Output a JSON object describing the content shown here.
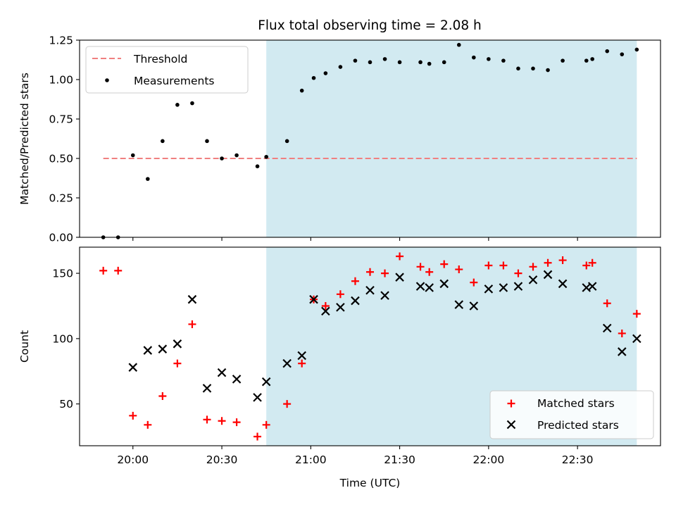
{
  "title": "Flux total observing time = 2.08 h",
  "colors": {
    "shade": "#add8e6",
    "threshold": "#f08080",
    "measurement": "#000000",
    "matched": "#ff0000",
    "predicted": "#000000"
  },
  "chart_data": [
    {
      "type": "scatter",
      "panel": "top",
      "ylabel": "Matched/Predicted stars",
      "ylim": [
        0.0,
        1.25
      ],
      "yticks": [
        "0.00",
        "0.25",
        "0.50",
        "0.75",
        "1.00",
        "1.25"
      ],
      "shaded_interval": [
        "20:45",
        "22:50"
      ],
      "threshold": {
        "name": "Threshold",
        "value": 0.5,
        "x_range": [
          "19:50",
          "22:50"
        ]
      },
      "legend": {
        "placement": "upper-left",
        "entries": [
          "Threshold",
          "Measurements"
        ]
      },
      "series": [
        {
          "name": "Measurements",
          "marker": "dot",
          "x": [
            "19:50",
            "19:55",
            "20:00",
            "20:05",
            "20:10",
            "20:15",
            "20:20",
            "20:25",
            "20:30",
            "20:35",
            "20:42",
            "20:45",
            "20:52",
            "20:57",
            "21:01",
            "21:05",
            "21:10",
            "21:15",
            "21:20",
            "21:25",
            "21:30",
            "21:37",
            "21:40",
            "21:45",
            "21:50",
            "21:55",
            "22:00",
            "22:05",
            "22:10",
            "22:15",
            "22:20",
            "22:25",
            "22:33",
            "22:35",
            "22:40",
            "22:45",
            "22:50"
          ],
          "y": [
            0.0,
            0.0,
            0.52,
            0.37,
            0.61,
            0.84,
            0.85,
            0.61,
            0.5,
            0.52,
            0.45,
            0.51,
            0.61,
            0.93,
            1.01,
            1.04,
            1.08,
            1.12,
            1.11,
            1.13,
            1.11,
            1.11,
            1.1,
            1.11,
            1.22,
            1.14,
            1.13,
            1.12,
            1.07,
            1.07,
            1.06,
            1.12,
            1.12,
            1.13,
            1.18,
            1.16,
            1.19
          ]
        }
      ]
    },
    {
      "type": "scatter",
      "panel": "bottom",
      "xlabel": "Time (UTC)",
      "ylabel": "Count",
      "ylim": [
        18,
        170
      ],
      "yticks": [
        "50",
        "100",
        "150"
      ],
      "xticks": [
        "20:00",
        "20:30",
        "21:00",
        "21:30",
        "22:00",
        "22:30"
      ],
      "xlim": [
        "19:42",
        "22:58"
      ],
      "shaded_interval": [
        "20:45",
        "22:50"
      ],
      "legend": {
        "placement": "lower-right",
        "entries": [
          "Matched stars",
          "Predicted stars"
        ]
      },
      "series": [
        {
          "name": "Matched stars",
          "marker": "plus",
          "x": [
            "19:50",
            "19:55",
            "20:00",
            "20:05",
            "20:10",
            "20:15",
            "20:20",
            "20:25",
            "20:30",
            "20:35",
            "20:42",
            "20:45",
            "20:52",
            "20:57",
            "21:01",
            "21:05",
            "21:10",
            "21:15",
            "21:20",
            "21:25",
            "21:30",
            "21:37",
            "21:40",
            "21:45",
            "21:50",
            "21:55",
            "22:00",
            "22:05",
            "22:10",
            "22:15",
            "22:20",
            "22:25",
            "22:33",
            "22:35",
            "22:40",
            "22:45",
            "22:50"
          ],
          "y": [
            152,
            152,
            41,
            34,
            56,
            81,
            111,
            38,
            37,
            36,
            25,
            34,
            50,
            81,
            130,
            125,
            134,
            144,
            151,
            150,
            163,
            155,
            151,
            157,
            153,
            143,
            156,
            156,
            150,
            155,
            158,
            160,
            156,
            158,
            127,
            104,
            119
          ]
        },
        {
          "name": "Predicted stars",
          "marker": "x",
          "x": [
            "20:00",
            "20:05",
            "20:10",
            "20:15",
            "20:20",
            "20:25",
            "20:30",
            "20:35",
            "20:42",
            "20:45",
            "20:52",
            "20:57",
            "21:01",
            "21:05",
            "21:10",
            "21:15",
            "21:20",
            "21:25",
            "21:30",
            "21:37",
            "21:40",
            "21:45",
            "21:50",
            "21:55",
            "22:00",
            "22:05",
            "22:10",
            "22:15",
            "22:20",
            "22:25",
            "22:33",
            "22:35",
            "22:40",
            "22:45",
            "22:50"
          ],
          "y": [
            78,
            91,
            92,
            96,
            130,
            62,
            74,
            69,
            55,
            67,
            81,
            87,
            130,
            121,
            124,
            129,
            137,
            133,
            147,
            140,
            139,
            142,
            126,
            125,
            138,
            139,
            140,
            145,
            149,
            142,
            139,
            140,
            108,
            90,
            100
          ]
        }
      ]
    }
  ]
}
